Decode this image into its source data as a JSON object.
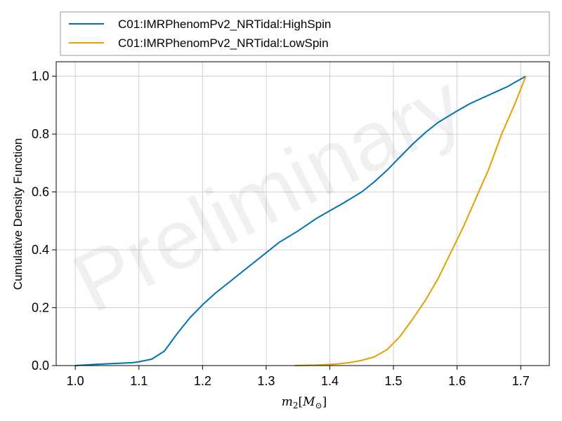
{
  "chart_data": {
    "type": "line",
    "xlabel": "m_2[M_⊙]",
    "xlabel_parts": {
      "base": "m",
      "sub": "2",
      "bracket_open": "[",
      "unit": "M",
      "unit_sub": "⊙",
      "bracket_close": "]"
    },
    "ylabel": "Cumulative Density Function",
    "watermark": "Preliminary",
    "xlim": [
      0.97,
      1.745
    ],
    "ylim": [
      0,
      1.05
    ],
    "xticks": [
      "1.0",
      "1.1",
      "1.2",
      "1.3",
      "1.4",
      "1.5",
      "1.6",
      "1.7"
    ],
    "yticks": [
      "0.0",
      "0.2",
      "0.4",
      "0.6",
      "0.8",
      "1.0"
    ],
    "grid": true,
    "legend_position": "top, above plot",
    "series": [
      {
        "name": "C01:IMRPhenomPv2_NRTidal:HighSpin",
        "color": "#0072b2",
        "x": [
          1.0,
          1.03,
          1.06,
          1.09,
          1.1,
          1.12,
          1.14,
          1.16,
          1.18,
          1.2,
          1.22,
          1.24,
          1.26,
          1.28,
          1.3,
          1.32,
          1.35,
          1.38,
          1.4,
          1.42,
          1.45,
          1.47,
          1.49,
          1.51,
          1.53,
          1.55,
          1.57,
          1.6,
          1.62,
          1.64,
          1.66,
          1.68,
          1.69,
          1.7,
          1.708
        ],
        "y": [
          0.0,
          0.004,
          0.007,
          0.01,
          0.013,
          0.022,
          0.05,
          0.11,
          0.165,
          0.21,
          0.25,
          0.285,
          0.32,
          0.355,
          0.39,
          0.425,
          0.465,
          0.51,
          0.535,
          0.56,
          0.6,
          0.635,
          0.675,
          0.72,
          0.765,
          0.805,
          0.84,
          0.88,
          0.905,
          0.925,
          0.945,
          0.965,
          0.978,
          0.99,
          1.0
        ]
      },
      {
        "name": "C01:IMRPhenomPv2_NRTidal:LowSpin",
        "color": "#e69f00",
        "x": [
          1.345,
          1.38,
          1.41,
          1.43,
          1.45,
          1.47,
          1.49,
          1.51,
          1.53,
          1.55,
          1.57,
          1.59,
          1.61,
          1.63,
          1.65,
          1.67,
          1.69,
          1.708
        ],
        "y": [
          0.0,
          0.002,
          0.005,
          0.01,
          0.018,
          0.03,
          0.055,
          0.1,
          0.16,
          0.225,
          0.3,
          0.39,
          0.48,
          0.58,
          0.68,
          0.8,
          0.9,
          1.0
        ]
      }
    ]
  }
}
